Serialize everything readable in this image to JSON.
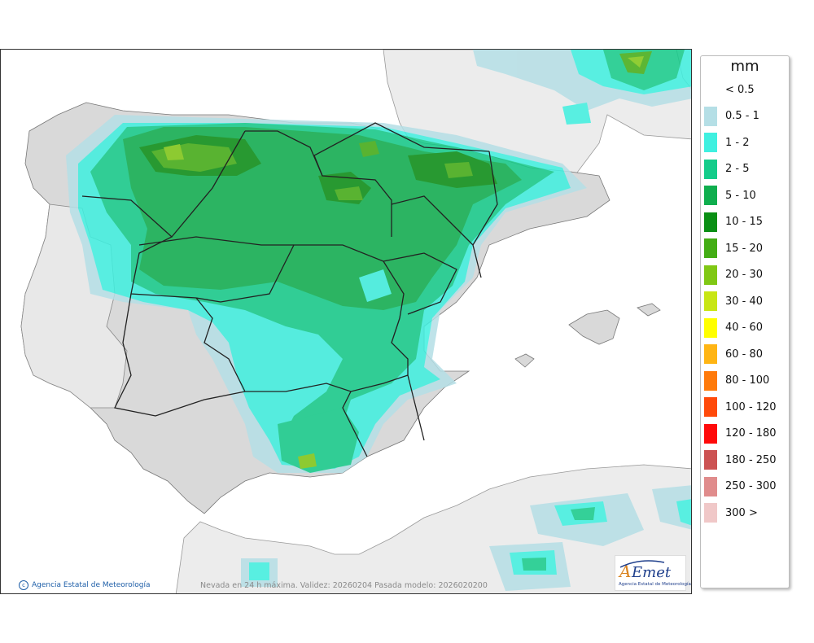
{
  "map": {
    "credit": "Agencia Estatal de Meteorología",
    "caption": "Nevada en 24 h máxima. Validez: 20260204 Pasada modelo: 2026020200",
    "logo_text": "AEmet",
    "logo_subtitle": "Agencia Estatal de Meteorología"
  },
  "legend": {
    "title": "mm",
    "items": [
      {
        "label": "< 0.5",
        "color": "#ffffff"
      },
      {
        "label": "0.5 - 1",
        "color": "#b5dfe6"
      },
      {
        "label": "1 - 2",
        "color": "#3ff0e0"
      },
      {
        "label": "2 - 5",
        "color": "#14cc8a"
      },
      {
        "label": "5 - 10",
        "color": "#0fae4e"
      },
      {
        "label": "10 - 15",
        "color": "#0a8f14"
      },
      {
        "label": "15 - 20",
        "color": "#43ad14"
      },
      {
        "label": "20 - 30",
        "color": "#80c814"
      },
      {
        "label": "30 - 40",
        "color": "#c8e614"
      },
      {
        "label": "40 - 60",
        "color": "#ffff00"
      },
      {
        "label": "60 - 80",
        "color": "#ffb514"
      },
      {
        "label": "80 - 100",
        "color": "#ff7a0a"
      },
      {
        "label": "100 - 120",
        "color": "#ff4a0a"
      },
      {
        "label": "120 - 180",
        "color": "#ff0a0a"
      },
      {
        "label": "180 - 250",
        "color": "#cc5252"
      },
      {
        "label": "250 - 300",
        "color": "#e08c8c"
      },
      {
        "label": "300 >",
        "color": "#f0c8c8"
      }
    ]
  }
}
